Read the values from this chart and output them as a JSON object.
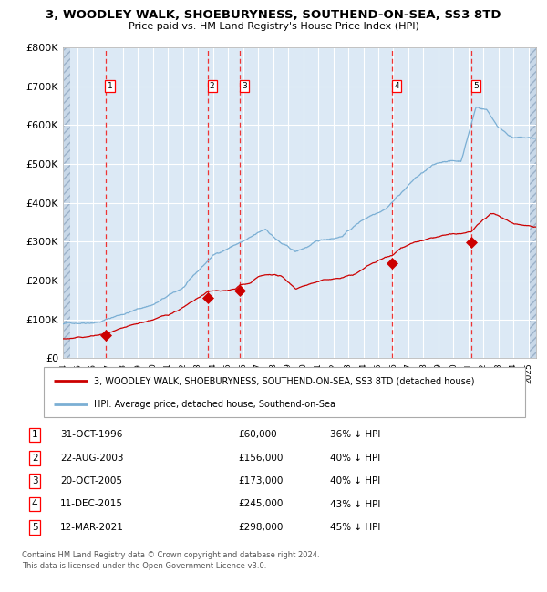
{
  "title": "3, WOODLEY WALK, SHOEBURYNESS, SOUTHEND-ON-SEA, SS3 8TD",
  "subtitle": "Price paid vs. HM Land Registry's House Price Index (HPI)",
  "ylim": [
    0,
    800000
  ],
  "yticks": [
    0,
    100000,
    200000,
    300000,
    400000,
    500000,
    600000,
    700000,
    800000
  ],
  "ytick_labels": [
    "£0",
    "£100K",
    "£200K",
    "£300K",
    "£400K",
    "£500K",
    "£600K",
    "£700K",
    "£800K"
  ],
  "hpi_color": "#7bafd4",
  "price_color": "#cc0000",
  "marker_color": "#cc0000",
  "vline_color": "#ee3333",
  "background_color": "#dce9f5",
  "grid_color": "#ffffff",
  "transactions": [
    {
      "num": 1,
      "date_x": 1996.83,
      "price": 60000,
      "label": "31-OCT-1996",
      "price_str": "£60,000",
      "pct": "36% ↓ HPI"
    },
    {
      "num": 2,
      "date_x": 2003.64,
      "price": 156000,
      "label": "22-AUG-2003",
      "price_str": "£156,000",
      "pct": "40% ↓ HPI"
    },
    {
      "num": 3,
      "date_x": 2005.8,
      "price": 173000,
      "label": "20-OCT-2005",
      "price_str": "£173,000",
      "pct": "40% ↓ HPI"
    },
    {
      "num": 4,
      "date_x": 2015.94,
      "price": 245000,
      "label": "11-DEC-2015",
      "price_str": "£245,000",
      "pct": "43% ↓ HPI"
    },
    {
      "num": 5,
      "date_x": 2021.19,
      "price": 298000,
      "label": "12-MAR-2021",
      "price_str": "£298,000",
      "pct": "45% ↓ HPI"
    }
  ],
  "legend_line1": "3, WOODLEY WALK, SHOEBURYNESS, SOUTHEND-ON-SEA, SS3 8TD (detached house)",
  "legend_line2": "HPI: Average price, detached house, Southend-on-Sea",
  "footnote1": "Contains HM Land Registry data © Crown copyright and database right 2024.",
  "footnote2": "This data is licensed under the Open Government Licence v3.0.",
  "xmin": 1994.0,
  "xmax": 2025.5,
  "hatch_left_end": 1994.5,
  "hatch_right_start": 2025.0,
  "xtick_years": [
    1994,
    1995,
    1996,
    1997,
    1998,
    1999,
    2000,
    2001,
    2002,
    2003,
    2004,
    2005,
    2006,
    2007,
    2008,
    2009,
    2010,
    2011,
    2012,
    2013,
    2014,
    2015,
    2016,
    2017,
    2018,
    2019,
    2020,
    2021,
    2022,
    2023,
    2024,
    2025
  ]
}
